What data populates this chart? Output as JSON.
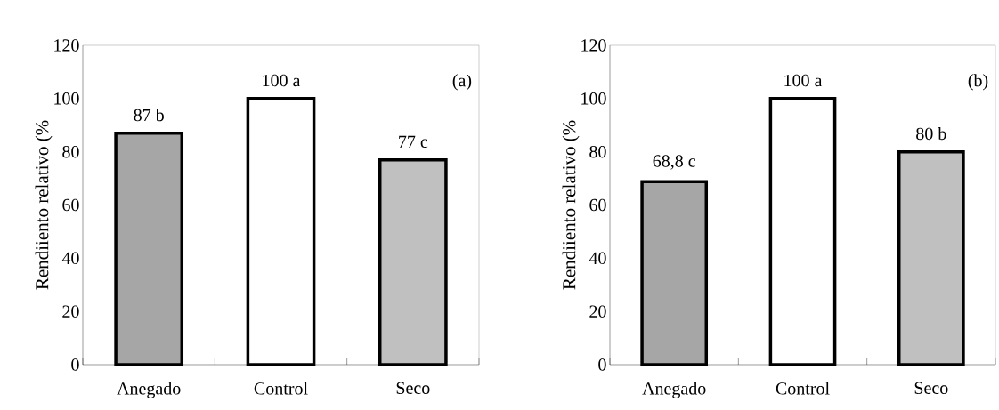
{
  "chart_data": [
    {
      "type": "bar",
      "ylabel": "Rendiiento relativo (%",
      "categories": [
        "Anegado",
        "Control",
        "Seco"
      ],
      "values": [
        87,
        100,
        77
      ],
      "colors": [
        "#a6a6a6",
        "#ffffff",
        "#c0c0c0"
      ],
      "value_labels": [
        "87 b",
        "100 a",
        "77 c"
      ],
      "ylim": [
        0,
        120
      ],
      "yticks": [
        0,
        20,
        40,
        60,
        80,
        100,
        120
      ],
      "annotations": [
        "(a)"
      ]
    },
    {
      "type": "bar",
      "ylabel": "Rendiiento relativo (%",
      "categories": [
        "Anegado",
        "Control",
        "Seco"
      ],
      "values": [
        68.8,
        100,
        80
      ],
      "colors": [
        "#a6a6a6",
        "#ffffff",
        "#c0c0c0"
      ],
      "value_labels": [
        "68,8 c",
        "100 a",
        "80 b"
      ],
      "ylim": [
        0,
        120
      ],
      "yticks": [
        0,
        20,
        40,
        60,
        80,
        100,
        120
      ],
      "annotations": [
        "(b)"
      ]
    }
  ]
}
